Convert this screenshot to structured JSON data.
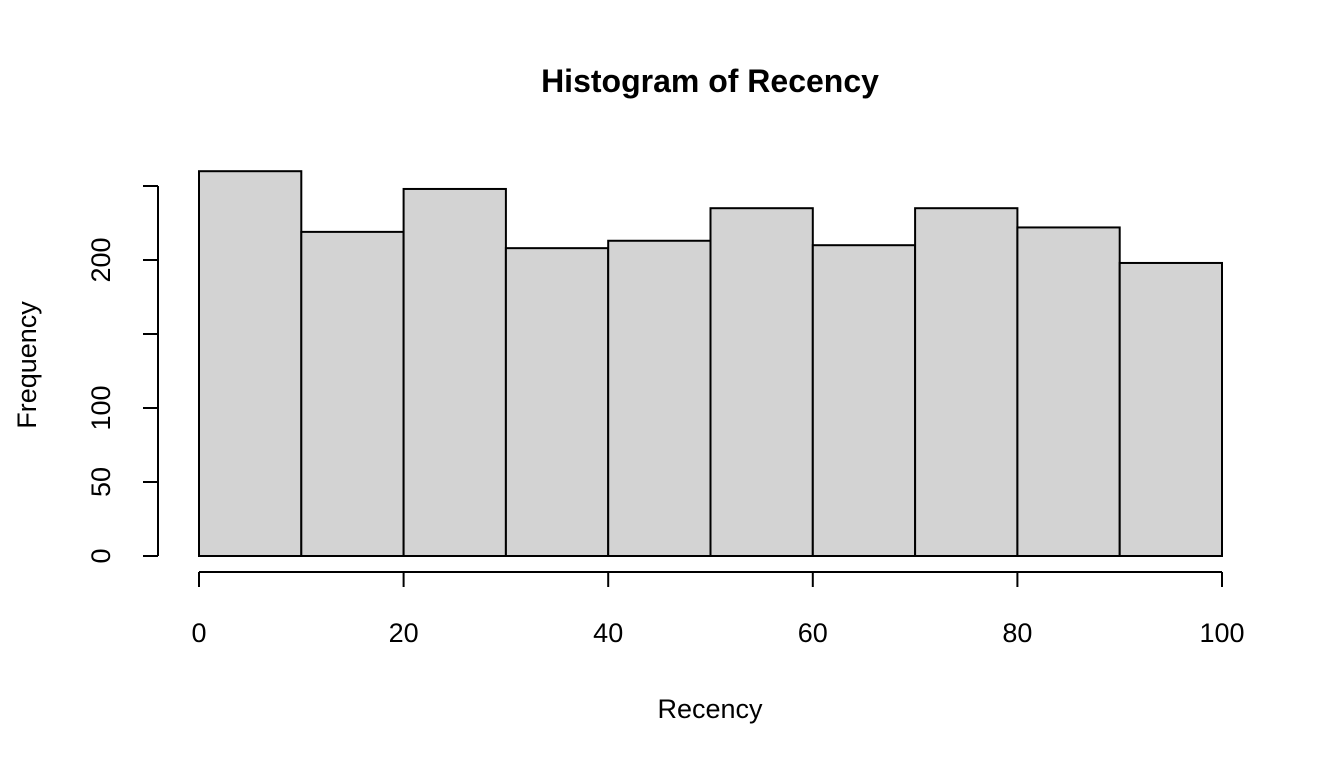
{
  "chart_data": {
    "type": "bar",
    "title": "Histogram of Recency",
    "xlabel": "Recency",
    "ylabel": "Frequency",
    "bins": [
      {
        "x0": 0,
        "x1": 10,
        "value": 260
      },
      {
        "x0": 10,
        "x1": 20,
        "value": 219
      },
      {
        "x0": 20,
        "x1": 30,
        "value": 248
      },
      {
        "x0": 30,
        "x1": 40,
        "value": 208
      },
      {
        "x0": 40,
        "x1": 50,
        "value": 213
      },
      {
        "x0": 50,
        "x1": 60,
        "value": 235
      },
      {
        "x0": 60,
        "x1": 70,
        "value": 210
      },
      {
        "x0": 70,
        "x1": 80,
        "value": 235
      },
      {
        "x0": 80,
        "x1": 90,
        "value": 222
      },
      {
        "x0": 90,
        "x1": 100,
        "value": 198
      }
    ],
    "xlim": [
      0,
      100
    ],
    "ylim": [
      0,
      250
    ],
    "x_ticks": [
      0,
      20,
      40,
      60,
      80,
      100
    ],
    "x_tick_labels": [
      "0",
      "20",
      "40",
      "60",
      "80",
      "100"
    ],
    "y_ticks": [
      0,
      50,
      100,
      150,
      200,
      250
    ],
    "y_tick_labels": [
      "0",
      "50",
      "100",
      "",
      "200",
      ""
    ],
    "bar_fill": "#d3d3d3",
    "bar_stroke": "#000000",
    "grid": false
  }
}
